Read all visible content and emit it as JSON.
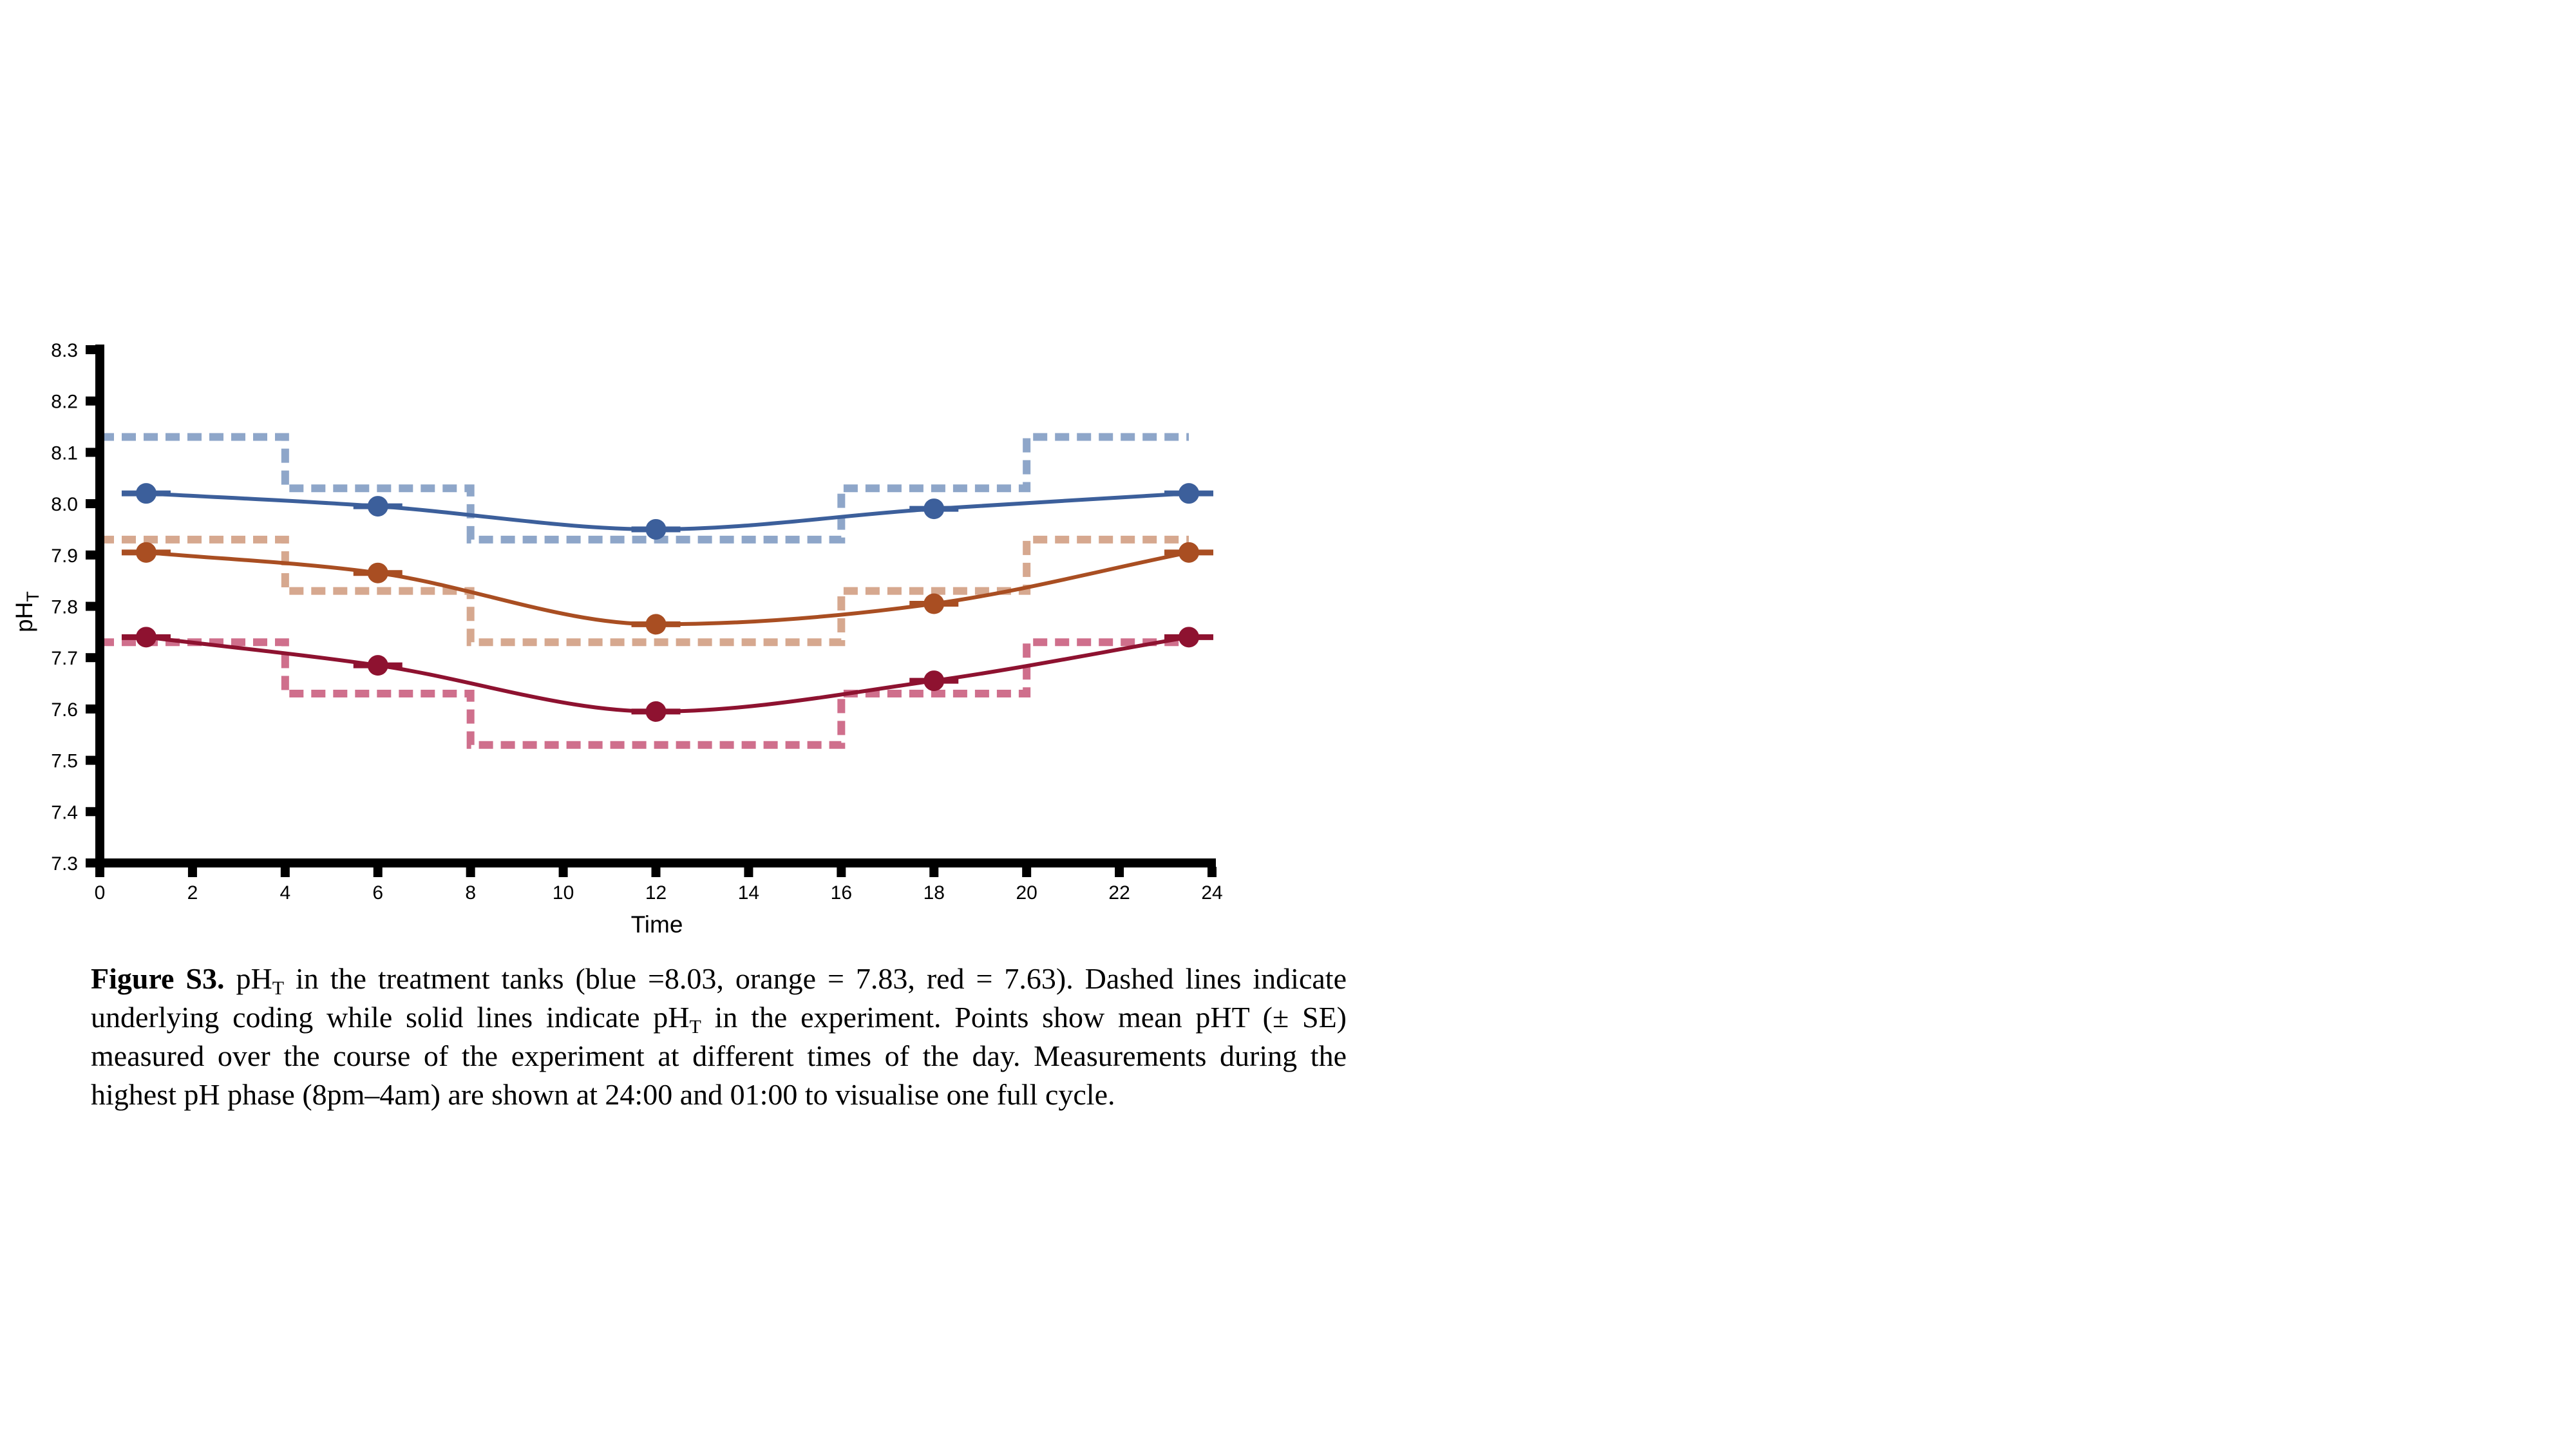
{
  "chart_data": {
    "type": "line",
    "xlabel": "Time",
    "ylabel": {
      "base": "pH",
      "subscript": "T"
    },
    "xlim": [
      0,
      24
    ],
    "ylim": [
      7.3,
      8.3
    ],
    "x_ticks": [
      "0",
      "2",
      "4",
      "6",
      "8",
      "10",
      "12",
      "14",
      "16",
      "18",
      "20",
      "22",
      "24"
    ],
    "y_ticks": [
      "7.3",
      "7.4",
      "7.5",
      "7.6",
      "7.7",
      "7.8",
      "7.9",
      "8.0",
      "8.1",
      "8.2",
      "8.3"
    ],
    "grid": false,
    "series": [
      {
        "color": "#3c5f9b",
        "coding_color": "#8ea6c9",
        "points": {
          "x": [
            1,
            6,
            12,
            18,
            23.5
          ],
          "y": [
            8.02,
            7.995,
            7.95,
            7.99,
            8.02
          ]
        },
        "coding": {
          "x": [
            0,
            4,
            4,
            8,
            8,
            16,
            16,
            20,
            20,
            23.5
          ],
          "y": [
            8.13,
            8.13,
            8.03,
            8.03,
            7.93,
            7.93,
            8.03,
            8.03,
            8.13,
            8.13
          ]
        }
      },
      {
        "color": "#a94e22",
        "coding_color": "#d6a88f",
        "points": {
          "x": [
            1,
            6,
            12,
            18,
            23.5
          ],
          "y": [
            7.905,
            7.865,
            7.765,
            7.805,
            7.905
          ]
        },
        "coding": {
          "x": [
            0,
            4,
            4,
            8,
            8,
            16,
            16,
            20,
            20,
            23.5
          ],
          "y": [
            7.93,
            7.93,
            7.83,
            7.83,
            7.73,
            7.73,
            7.83,
            7.83,
            7.93,
            7.93
          ]
        }
      },
      {
        "color": "#8e1230",
        "coding_color": "#cf6f8c",
        "points": {
          "x": [
            1,
            6,
            12,
            18,
            23.5
          ],
          "y": [
            7.74,
            7.685,
            7.595,
            7.655,
            7.74
          ]
        },
        "coding": {
          "x": [
            0,
            4,
            4,
            8,
            8,
            16,
            16,
            20,
            20,
            23.5
          ],
          "y": [
            7.73,
            7.73,
            7.63,
            7.63,
            7.53,
            7.53,
            7.63,
            7.63,
            7.73,
            7.73
          ]
        }
      }
    ]
  },
  "caption": {
    "label": "Figure S3.",
    "ph": "pH",
    "t": "T",
    "part1": " in the treatment tanks (blue =8.03, orange = 7.83, red = 7.63). Dashed lines indicate underlying coding while solid lines indicate ",
    "part2": " in the experiment. Points show mean pHT (± SE) measured over the course of the experiment at different times of the day. Measurements during the highest pH phase (8pm–4am) are shown at 24:00 and 01:00 to visualise one full cycle."
  }
}
